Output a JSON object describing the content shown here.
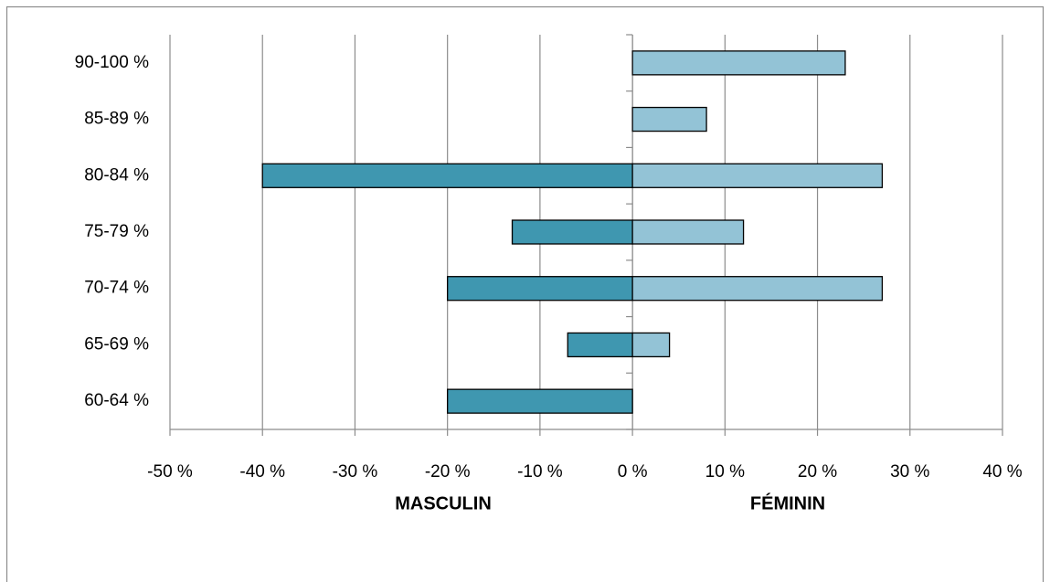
{
  "chart_data": {
    "type": "bar",
    "orientation": "horizontal",
    "stacked": false,
    "categories": [
      "90-100 %",
      "85-89 %",
      "80-84 %",
      "75-79 %",
      "70-74 %",
      "65-69 %",
      "60-64 %"
    ],
    "series": [
      {
        "name": "MASCULIN",
        "color": "#3f97b0",
        "values": [
          null,
          null,
          -40,
          -13,
          -20,
          -7,
          -20
        ]
      },
      {
        "name": "FÉMININ",
        "color": "#93c3d6",
        "values": [
          23,
          8,
          27,
          12,
          27,
          4,
          null
        ]
      }
    ],
    "xlim": [
      -50,
      40
    ],
    "xticks": [
      {
        "value": -50,
        "label": "-50 %"
      },
      {
        "value": -40,
        "label": "-40 %"
      },
      {
        "value": -30,
        "label": "-30 %"
      },
      {
        "value": -20,
        "label": "-20 %"
      },
      {
        "value": -10,
        "label": "-10 %"
      },
      {
        "value": 0,
        "label": "0 %"
      },
      {
        "value": 10,
        "label": "10 %"
      },
      {
        "value": 20,
        "label": "20 %"
      },
      {
        "value": 30,
        "label": "30 %"
      },
      {
        "value": 40,
        "label": "40 %"
      }
    ],
    "grid": true
  }
}
